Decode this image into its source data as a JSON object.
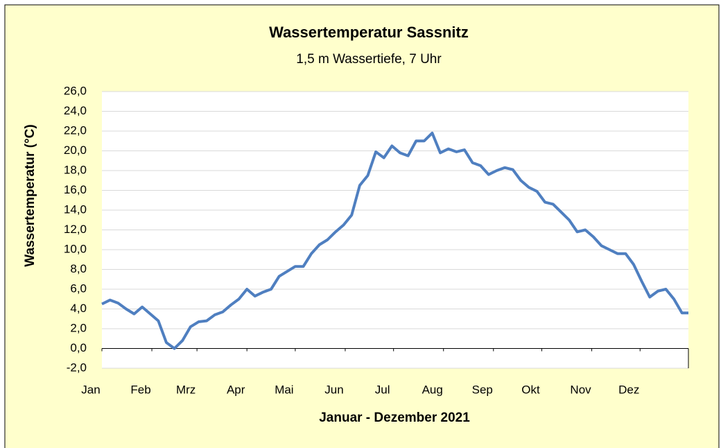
{
  "chart_data": {
    "type": "line",
    "title": "Wassertemperatur Sassnitz",
    "subtitle": "1,5 m Wassertiefe, 7 Uhr",
    "x_label": "Januar - Dezember 2021",
    "y_label": "Wassertemperatur (°C)",
    "xlim": [
      1,
      365
    ],
    "xticks": [
      {
        "value": 1,
        "label": "Jan"
      },
      {
        "value": 32,
        "label": "Feb"
      },
      {
        "value": 60,
        "label": "Mrz"
      },
      {
        "value": 91,
        "label": "Apr"
      },
      {
        "value": 121,
        "label": "Mai"
      },
      {
        "value": 152,
        "label": "Jun"
      },
      {
        "value": 182,
        "label": "Jul"
      },
      {
        "value": 213,
        "label": "Aug"
      },
      {
        "value": 244,
        "label": "Sep"
      },
      {
        "value": 274,
        "label": "Okt"
      },
      {
        "value": 305,
        "label": "Nov"
      },
      {
        "value": 335,
        "label": "Dez"
      }
    ],
    "ylim": [
      -2,
      26
    ],
    "yticks": [
      {
        "value": -2,
        "label": "-2,0"
      },
      {
        "value": 0,
        "label": "0,0"
      },
      {
        "value": 2,
        "label": "2,0"
      },
      {
        "value": 4,
        "label": "4,0"
      },
      {
        "value": 6,
        "label": "6,0"
      },
      {
        "value": 8,
        "label": "8,0"
      },
      {
        "value": 10,
        "label": "10,0"
      },
      {
        "value": 12,
        "label": "12,0"
      },
      {
        "value": 14,
        "label": "14,0"
      },
      {
        "value": 16,
        "label": "16,0"
      },
      {
        "value": 18,
        "label": "18,0"
      },
      {
        "value": 20,
        "label": "20,0"
      },
      {
        "value": 22,
        "label": "22,0"
      },
      {
        "value": 24,
        "label": "24,0"
      },
      {
        "value": 26,
        "label": "26,0"
      }
    ],
    "grid": true,
    "x": [
      1,
      6,
      11,
      16,
      21,
      26,
      31,
      36,
      41,
      46,
      51,
      56,
      61,
      66,
      71,
      76,
      81,
      86,
      91,
      96,
      101,
      106,
      111,
      116,
      121,
      126,
      131,
      136,
      141,
      146,
      151,
      156,
      161,
      166,
      171,
      176,
      181,
      186,
      191,
      196,
      201,
      206,
      211,
      216,
      221,
      226,
      231,
      236,
      241,
      246,
      251,
      256,
      261,
      266,
      271,
      276,
      281,
      286,
      291,
      296,
      301,
      306,
      311,
      316,
      321,
      326,
      331,
      336,
      341,
      346,
      351,
      356,
      361,
      365
    ],
    "series": [
      {
        "name": "Wassertemperatur",
        "color": "#4f7fc0",
        "values": [
          4.5,
          4.9,
          4.6,
          4.0,
          3.5,
          4.2,
          3.5,
          2.8,
          0.6,
          0.0,
          0.8,
          2.2,
          2.7,
          2.8,
          3.4,
          3.7,
          4.4,
          5.0,
          6.0,
          5.3,
          5.7,
          6.0,
          7.3,
          7.8,
          8.3,
          8.3,
          9.6,
          10.5,
          11.0,
          11.8,
          12.5,
          13.5,
          16.5,
          17.5,
          19.9,
          19.3,
          20.5,
          19.8,
          19.5,
          21.0,
          21.0,
          21.8,
          19.8,
          20.2,
          19.9,
          20.1,
          18.8,
          18.5,
          17.6,
          18.0,
          18.3,
          18.1,
          17.0,
          16.3,
          15.9,
          14.8,
          14.6,
          13.8,
          13.0,
          11.8,
          12.0,
          11.3,
          10.4,
          10.0,
          9.6,
          9.6,
          8.5,
          6.8,
          5.2,
          5.8,
          6.0,
          5.0,
          3.6,
          3.6
        ]
      }
    ]
  }
}
